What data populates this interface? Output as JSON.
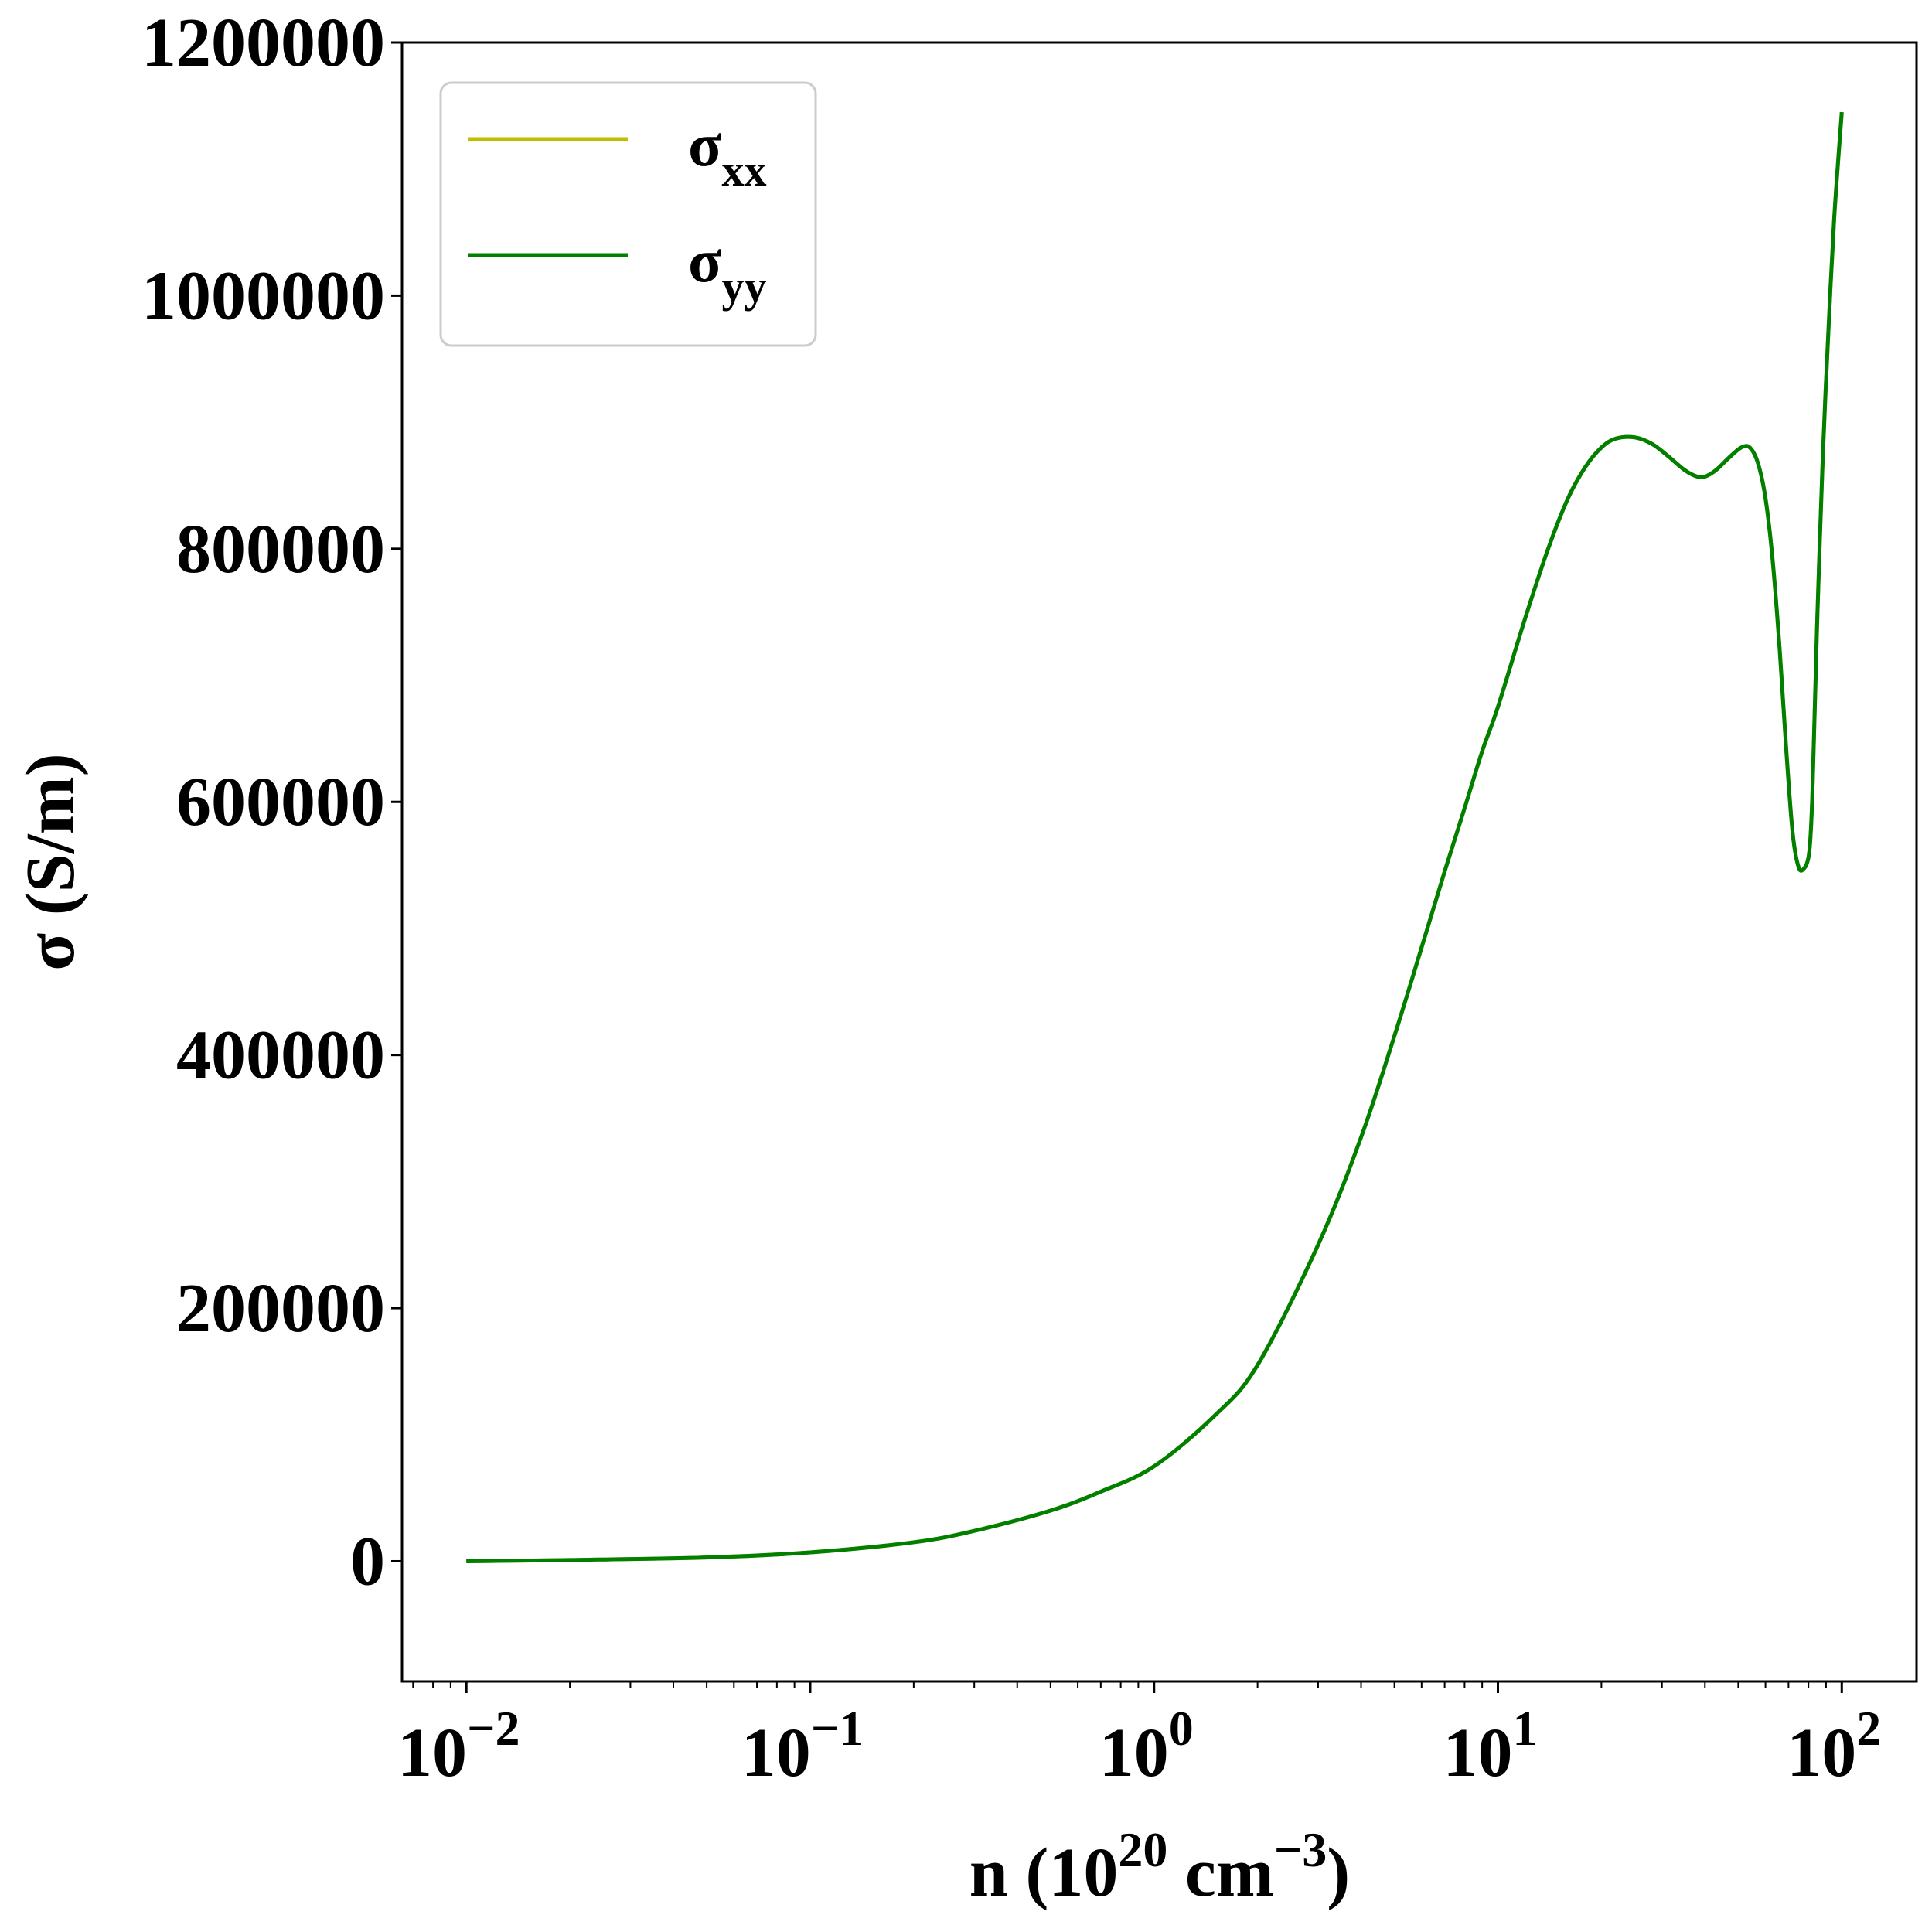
{
  "chart_data": {
    "type": "line",
    "x_scale": "log",
    "xlim": [
      0.0065,
      165
    ],
    "ylim": [
      -95000,
      1200000
    ],
    "grid": false,
    "legend_position": "upper-left",
    "x_ticks": [
      {
        "value": 0.01,
        "base": "10",
        "exp": "−2"
      },
      {
        "value": 0.1,
        "base": "10",
        "exp": "−1"
      },
      {
        "value": 1,
        "base": "10",
        "exp": "0"
      },
      {
        "value": 10,
        "base": "10",
        "exp": "1"
      },
      {
        "value": 100,
        "base": "10",
        "exp": "2"
      }
    ],
    "y_ticks": [
      0,
      200000,
      400000,
      600000,
      800000,
      1000000,
      1200000
    ],
    "xlabel": {
      "pre": "n (10",
      "exp1": "20",
      "mid": " cm",
      "exp2": "−3",
      "post": ")"
    },
    "ylabel": "σ (S/m)",
    "series": [
      {
        "name_main": "σ",
        "name_sub": "xx",
        "color": "#bfbf00",
        "x": [
          0.01,
          0.02,
          0.05,
          0.1,
          0.2,
          0.3,
          0.5,
          0.7,
          1.0,
          1.5,
          2.0,
          3.0,
          4.0,
          5.0,
          6.0,
          7.0,
          8.0,
          9.0,
          10.0,
          12.0,
          14.0,
          16.0,
          18.0,
          20.0,
          22.0,
          25.0,
          28.0,
          31.0,
          35.0,
          38.0,
          40.0,
          43.0,
          47.0,
          51.0,
          54.0,
          57.0,
          60.0,
          63.0,
          66.0,
          69.0,
          72.0,
          75.0,
          78.0,
          80.0,
          81.0,
          82.0,
          83.0,
          85.0,
          88.0,
          91.0,
          95.0,
          100.0
        ],
        "y": [
          0,
          1000,
          3000,
          7000,
          15000,
          24000,
          40000,
          55000,
          75000,
          115000,
          155000,
          250000,
          335000,
          415000,
          485000,
          545000,
          595000,
          640000,
          675000,
          745000,
          800000,
          840000,
          865000,
          880000,
          887000,
          888000,
          883000,
          874000,
          862000,
          857000,
          857000,
          862000,
          872000,
          880000,
          880000,
          868000,
          840000,
          790000,
          720000,
          640000,
          575000,
          548000,
          548000,
          556000,
          570000,
          600000,
          650000,
          750000,
          870000,
          960000,
          1060000,
          1145000
        ]
      },
      {
        "name_main": "σ",
        "name_sub": "yy",
        "color": "#007f00",
        "x": [
          0.01,
          0.02,
          0.05,
          0.1,
          0.2,
          0.3,
          0.5,
          0.7,
          1.0,
          1.5,
          2.0,
          3.0,
          4.0,
          5.0,
          6.0,
          7.0,
          8.0,
          9.0,
          10.0,
          12.0,
          14.0,
          16.0,
          18.0,
          20.0,
          22.0,
          25.0,
          28.0,
          31.0,
          35.0,
          38.0,
          40.0,
          43.0,
          47.0,
          51.0,
          54.0,
          57.0,
          60.0,
          63.0,
          66.0,
          69.0,
          72.0,
          75.0,
          78.0,
          80.0,
          81.0,
          82.0,
          83.0,
          85.0,
          88.0,
          91.0,
          95.0,
          100.0
        ],
        "y": [
          0,
          1000,
          3000,
          7000,
          15000,
          24000,
          40000,
          55000,
          75000,
          115000,
          155000,
          250000,
          335000,
          415000,
          485000,
          545000,
          595000,
          640000,
          675000,
          745000,
          800000,
          840000,
          865000,
          880000,
          887000,
          888000,
          883000,
          874000,
          862000,
          857000,
          857000,
          862000,
          872000,
          880000,
          880000,
          868000,
          840000,
          790000,
          720000,
          640000,
          575000,
          548000,
          548000,
          556000,
          570000,
          600000,
          650000,
          750000,
          870000,
          960000,
          1060000,
          1145000
        ]
      }
    ]
  }
}
